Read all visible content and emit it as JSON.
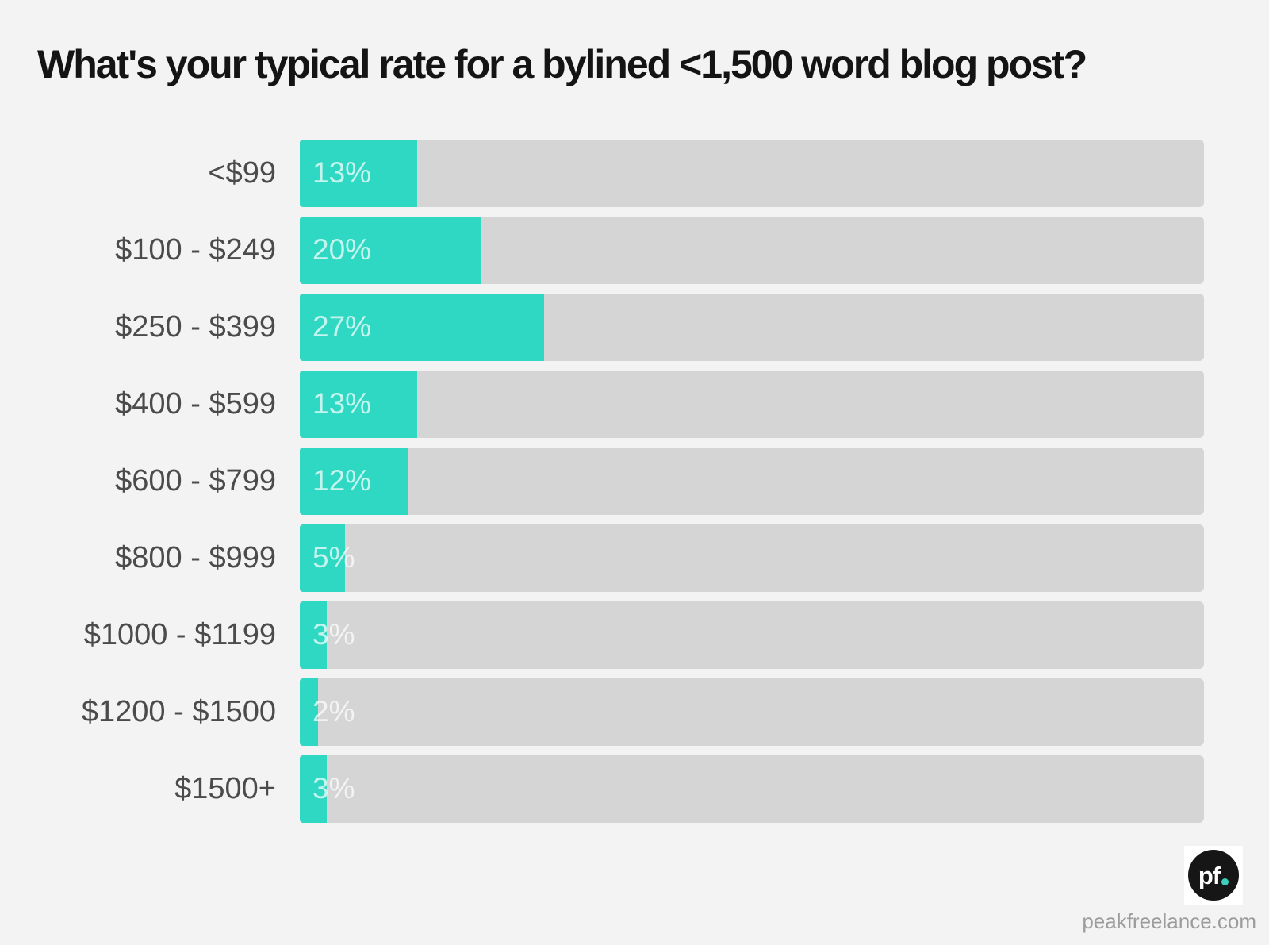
{
  "title": "What's your typical rate for a bylined <1,500 word blog post?",
  "chart_data": {
    "type": "bar",
    "orientation": "horizontal",
    "title": "What's your typical rate for a bylined <1,500 word blog post?",
    "categories": [
      "<$99",
      "$100 - $249",
      "$250 - $399",
      "$400 - $599",
      "$600 - $799",
      "$800 - $999",
      "$1000 - $1199",
      "$1200 - $1500",
      "$1500+"
    ],
    "values": [
      13,
      20,
      27,
      13,
      12,
      5,
      3,
      2,
      3
    ],
    "value_labels": [
      "13%",
      "20%",
      "27%",
      "13%",
      "12%",
      "5%",
      "3%",
      "2%",
      "3%"
    ],
    "xlabel": "",
    "ylabel": "",
    "xlim": [
      0,
      100
    ],
    "grid": false,
    "legend": false,
    "bar_color": "#2ed8c3",
    "track_color": "#d5d5d5",
    "value_label_color": "rgba(255,255,255,0.72)"
  },
  "footer": {
    "logo_text": "pf",
    "logo_dot_color": "#3ecdbb",
    "website": "peakfreelance.com"
  },
  "colors": {
    "background": "#f3f3f4",
    "title_text": "#141414",
    "category_text": "#4b4b4b",
    "logo_circle": "#161616"
  }
}
